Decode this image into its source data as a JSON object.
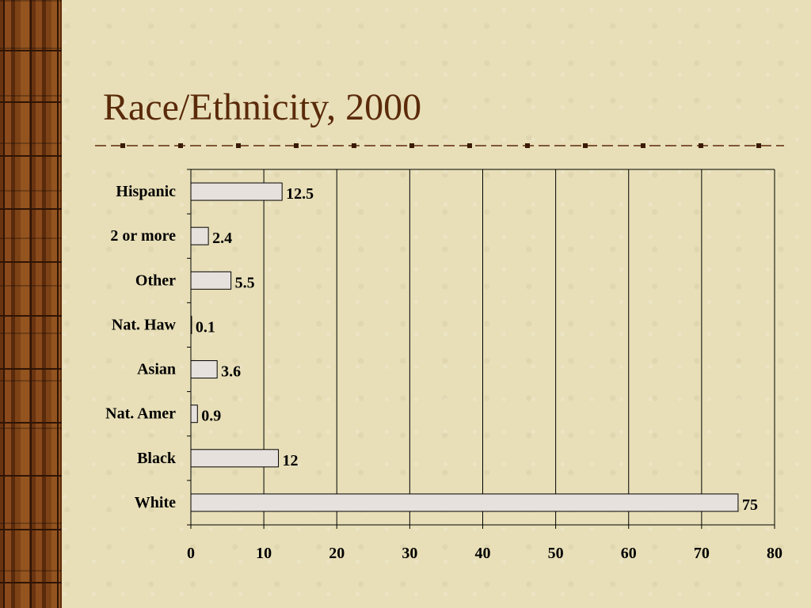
{
  "slide": {
    "title": "Race/Ethnicity, 2000"
  },
  "colors": {
    "background": "#e8dfb8",
    "title": "#5a2a0a",
    "bar_fill": "#e6e1dc",
    "bar_stroke": "#000000",
    "wood": "#7d4316"
  },
  "chart_data": {
    "type": "bar",
    "orientation": "horizontal",
    "categories": [
      "Hispanic",
      "2 or more",
      "Other",
      "Nat. Haw",
      "Asian",
      "Nat. Amer",
      "Black",
      "White"
    ],
    "values": [
      12.5,
      2.4,
      5.5,
      0.1,
      3.6,
      0.9,
      12,
      75
    ],
    "data_labels": [
      "12.5",
      "2.4",
      "5.5",
      "0.1",
      "3.6",
      "0.9",
      "12",
      "75"
    ],
    "xlim": [
      0,
      80
    ],
    "xticks": [
      0,
      10,
      20,
      30,
      40,
      50,
      60,
      70,
      80
    ],
    "xtick_labels": [
      "0",
      "10",
      "20",
      "30",
      "40",
      "50",
      "60",
      "70",
      "80"
    ],
    "grid": "vertical",
    "legend": "none"
  }
}
